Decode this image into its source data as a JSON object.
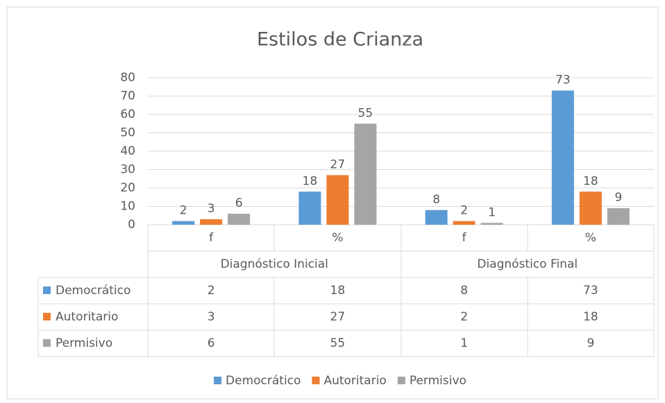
{
  "chart_data": {
    "type": "bar",
    "title": "Estilos de Crianza",
    "categories": [
      "f",
      "%",
      "f",
      "%"
    ],
    "category_groups": [
      "Diagnóstico Inicial",
      "Diagnóstico Final"
    ],
    "series": [
      {
        "name": "Democrático",
        "color": "#5b9bd5",
        "values": [
          2,
          18,
          8,
          73
        ]
      },
      {
        "name": "Autoritario",
        "color": "#ed7d31",
        "values": [
          3,
          27,
          2,
          18
        ]
      },
      {
        "name": "Permisivo",
        "color": "#a5a5a5",
        "values": [
          6,
          55,
          1,
          9
        ]
      }
    ],
    "ylim": [
      0,
      80
    ],
    "yticks": [
      0,
      10,
      20,
      30,
      40,
      50,
      60,
      70,
      80
    ],
    "grid": true,
    "legend": "bottom"
  }
}
